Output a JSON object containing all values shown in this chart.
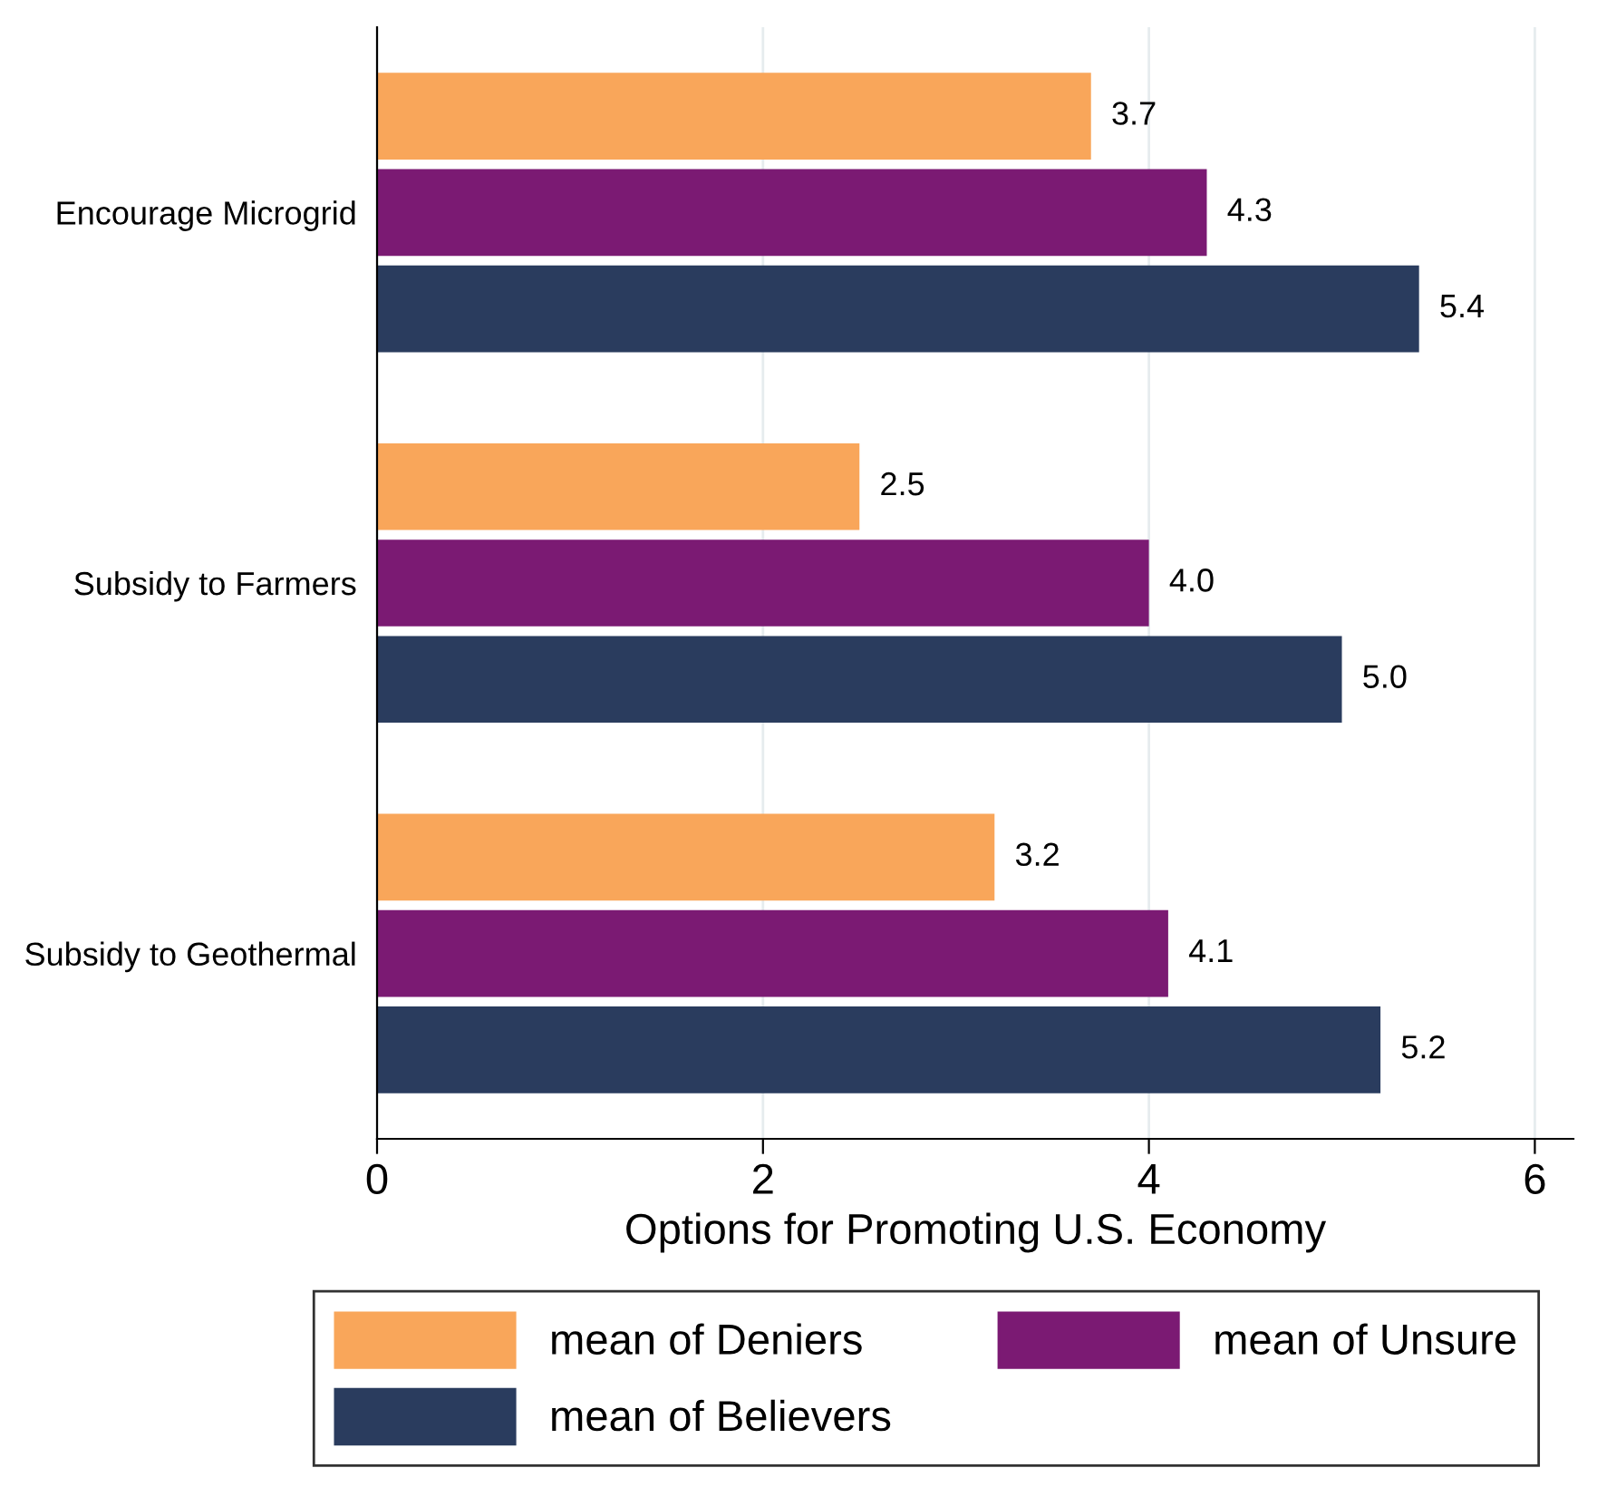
{
  "chart_data": {
    "type": "bar",
    "orientation": "horizontal",
    "xlabel": "Options for Promoting U.S. Economy",
    "categories": [
      "Encourage Microgrid",
      "Subsidy to Farmers",
      "Subsidy to Geothermal"
    ],
    "series": [
      {
        "name": "mean of Deniers",
        "color": "#f9a65a",
        "values": [
          3.7,
          2.5,
          3.2
        ],
        "value_labels": [
          "3.7",
          "2.5",
          "3.2"
        ]
      },
      {
        "name": "mean of Unsure",
        "color": "#7b1a73",
        "values": [
          4.3,
          4.0,
          4.1
        ],
        "value_labels": [
          "4.3",
          "4.0",
          "4.1"
        ]
      },
      {
        "name": "mean of Believers",
        "color": "#2a3c5e",
        "values": [
          5.4,
          5.0,
          5.2
        ],
        "value_labels": [
          "5.4",
          "5.0",
          "5.2"
        ]
      }
    ],
    "xlim": [
      0,
      6.2
    ],
    "xticks": [
      0,
      2,
      4,
      6
    ],
    "grid": "x",
    "legend": "bottom"
  }
}
